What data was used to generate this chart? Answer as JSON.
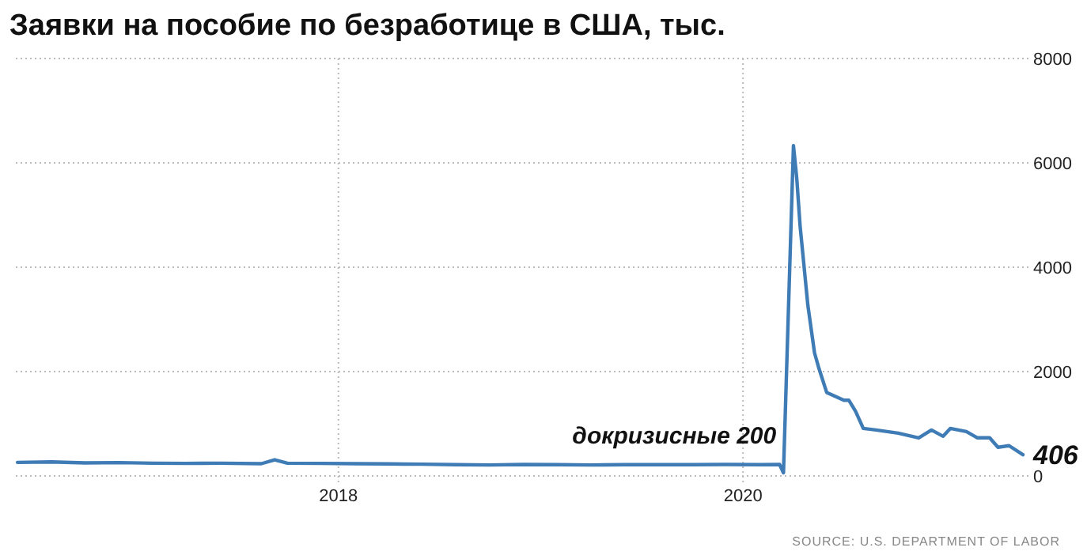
{
  "chart_data": {
    "type": "line",
    "title": "Заявки на пособие по безработице в США, тыс.",
    "x": [
      "2016-06-01",
      "2016-08-01",
      "2016-10-01",
      "2016-12-01",
      "2017-02-01",
      "2017-04-01",
      "2017-06-01",
      "2017-08-15",
      "2017-09-08",
      "2017-10-01",
      "2017-12-01",
      "2018-02-01",
      "2018-04-01",
      "2018-06-01",
      "2018-08-01",
      "2018-10-01",
      "2018-12-01",
      "2019-02-01",
      "2019-04-01",
      "2019-06-01",
      "2019-08-01",
      "2019-10-01",
      "2019-12-01",
      "2020-02-01",
      "2020-03-07",
      "2020-03-14",
      "2020-04-01",
      "2020-04-07",
      "2020-04-13",
      "2020-04-27",
      "2020-05-09",
      "2020-05-17",
      "2020-05-31",
      "2020-07-01",
      "2020-07-10",
      "2020-07-22",
      "2020-08-05",
      "2020-08-28",
      "2020-10-07",
      "2020-11-13",
      "2020-12-06",
      "2020-12-27",
      "2021-01-09",
      "2021-02-07",
      "2021-02-27",
      "2021-03-21",
      "2021-04-05",
      "2021-04-25",
      "2021-05-20"
    ],
    "series": [
      {
        "color": "#3f7cb6",
        "values": [
          260,
          270,
          250,
          255,
          245,
          240,
          245,
          235,
          310,
          245,
          240,
          235,
          230,
          225,
          215,
          210,
          220,
          215,
          210,
          215,
          215,
          215,
          220,
          215,
          220,
          60,
          6330,
          5700,
          4790,
          3270,
          2360,
          2060,
          1600,
          1450,
          1450,
          1240,
          910,
          880,
          820,
          730,
          880,
          760,
          910,
          850,
          730,
          730,
          550,
          580,
          406
        ]
      }
    ],
    "xlim": [
      "2016-05-29",
      "2021-05-30"
    ],
    "xticks": [
      {
        "value": "2018-01-01",
        "label": "2018"
      },
      {
        "value": "2020-01-01",
        "label": "2020"
      }
    ],
    "ylim": [
      0,
      8000
    ],
    "yticks": [
      0,
      2000,
      4000,
      6000,
      8000
    ],
    "grid": true,
    "annotations": [
      {
        "text": "докризисные 200",
        "x": "2020-03-01",
        "y": 200
      },
      {
        "text": "406",
        "x": "2021-05-20",
        "y": 406
      },
      "SOURCE: U.S. DEPARTMENT OF LABOR"
    ]
  }
}
